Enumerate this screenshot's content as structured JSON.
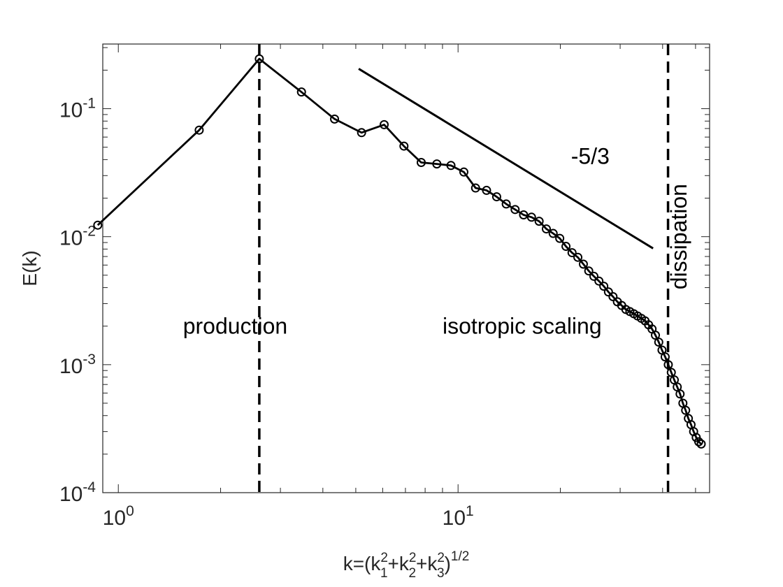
{
  "chart_data": {
    "type": "line",
    "xscale": "log",
    "yscale": "log",
    "xlim": [
      0.9,
      55
    ],
    "ylim": [
      0.0001,
      0.32
    ],
    "xticks": [
      {
        "base": "10",
        "exp": "0",
        "value": 1
      },
      {
        "base": "10",
        "exp": "1",
        "value": 10
      }
    ],
    "yticks": [
      {
        "base": "10",
        "exp": "-4",
        "value": 0.0001
      },
      {
        "base": "10",
        "exp": "-3",
        "value": 0.001
      },
      {
        "base": "10",
        "exp": "-2",
        "value": 0.01
      },
      {
        "base": "10",
        "exp": "-1",
        "value": 0.1
      }
    ],
    "xlabel": {
      "prefix": "k=(k",
      "s1": "1",
      "s2": "2",
      "s3": "3",
      "sup": "2",
      "plus": "+",
      "close": ")",
      "power": "1/2"
    },
    "ylabel": "E(k)",
    "grid": false,
    "legend": "none",
    "series": [
      {
        "marker": "circle",
        "color": "#000000",
        "x": [
          0.87,
          1.73,
          2.6,
          3.46,
          4.33,
          5.2,
          6.06,
          6.93,
          7.79,
          8.66,
          9.53,
          10.4,
          11.26,
          12.13,
          12.99,
          13.86,
          14.72,
          15.59,
          16.45,
          17.32,
          18.19,
          19.05,
          19.92,
          20.78,
          21.65,
          22.52,
          23.38,
          24.25,
          25.11,
          25.98,
          26.85,
          27.71,
          28.58,
          29.44,
          30.31,
          31.18,
          32.04,
          32.91,
          33.77,
          34.64,
          35.51,
          36.37,
          37.24,
          38.1,
          38.97,
          39.84,
          40.7,
          41.57,
          42.43,
          43.3,
          44.17,
          45.03,
          45.9,
          46.76,
          47.63,
          48.5,
          49.36,
          50.23,
          51.09,
          51.96
        ],
        "y": [
          0.0123,
          0.068,
          0.245,
          0.135,
          0.083,
          0.065,
          0.075,
          0.051,
          0.038,
          0.037,
          0.036,
          0.032,
          0.024,
          0.023,
          0.0205,
          0.018,
          0.0163,
          0.0148,
          0.0142,
          0.0132,
          0.0115,
          0.0106,
          0.0097,
          0.0084,
          0.0075,
          0.0069,
          0.0061,
          0.0054,
          0.0049,
          0.0045,
          0.0041,
          0.0037,
          0.0034,
          0.0031,
          0.0029,
          0.0027,
          0.0026,
          0.0025,
          0.0024,
          0.0023,
          0.0022,
          0.00205,
          0.0019,
          0.0017,
          0.0015,
          0.0013,
          0.00115,
          0.001,
          0.00087,
          0.00076,
          0.00067,
          0.00059,
          0.0005,
          0.00044,
          0.00038,
          0.00034,
          0.0003,
          0.00027,
          0.00025,
          0.00024
        ]
      }
    ],
    "reference_line": {
      "label": "-5/3",
      "x": [
        5.1,
        37.5
      ],
      "y": [
        0.205,
        0.0081
      ],
      "label_at": [
        24.5,
        0.037
      ]
    },
    "vlines": [
      2.6,
      41.5
    ],
    "regions": [
      {
        "label": "production",
        "x": 1.55,
        "y": 0.00175,
        "rotate": false
      },
      {
        "label": "isotropic scaling",
        "x": 9.0,
        "y": 0.00175,
        "rotate": false
      },
      {
        "label": "dissipation",
        "x": 47.0,
        "y": 0.01,
        "rotate": true
      }
    ]
  }
}
